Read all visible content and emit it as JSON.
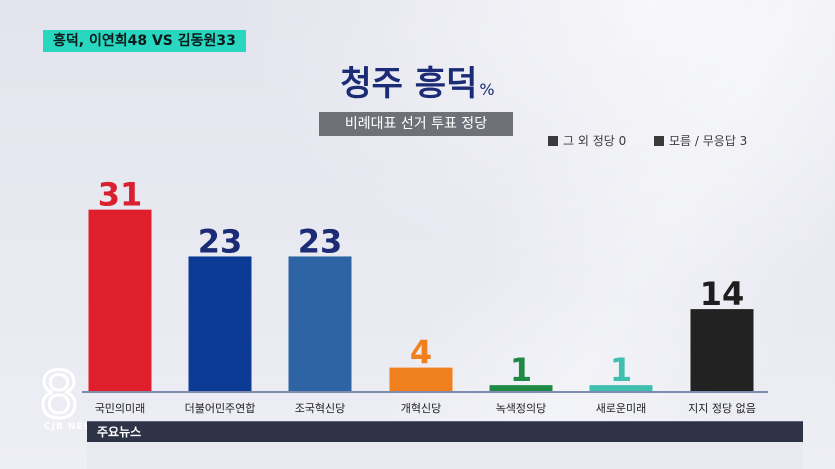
{
  "caption": "흥덕, 이연희48 VS 김동원33",
  "title": "청주 흥덕",
  "title_unit": "%",
  "subtitle": "비례대표 선거 투표 정당",
  "notes": [
    "그 외 정당 0",
    "모름 / 무응답 3"
  ],
  "ticker": {
    "label": "주요뉴스"
  },
  "logo": {
    "numeral": "8",
    "text": "CJB NEWS"
  },
  "colors": {
    "caption_bg": "#29d6c0",
    "title": "#1b2b75",
    "label_dark": "#1b2b75",
    "label_red": "#d9202e",
    "label_orange": "#f07f1e",
    "label_green": "#1f8a45",
    "label_teal": "#3fbfae",
    "label_black": "#1e1e1e"
  },
  "chart_data": {
    "type": "bar",
    "title": "청주 흥덕",
    "subtitle": "비례대표 선거 투표 정당",
    "categories": [
      "국민의미래",
      "더불어민주연합",
      "조국혁신당",
      "개혁신당",
      "녹색정의당",
      "새로운미래",
      "지지 정당 없음"
    ],
    "values": [
      31,
      23,
      23,
      4,
      1,
      1,
      14
    ],
    "bar_colors": [
      "#e01f2d",
      "#0b3b94",
      "#2e64a4",
      "#f07f1e",
      "#1f8a45",
      "#3fbfae",
      "#222222"
    ],
    "value_colors": [
      "#d9202e",
      "#1b2b75",
      "#1b2b75",
      "#f07f1e",
      "#1f8a45",
      "#3fbfae",
      "#1e1e1e"
    ],
    "ylim": [
      0,
      35
    ],
    "grid": false,
    "legend": "none"
  }
}
